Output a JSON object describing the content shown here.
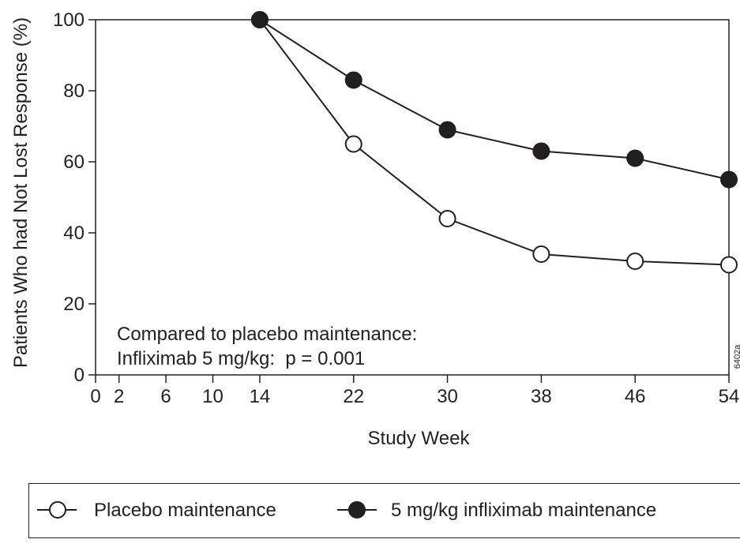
{
  "chart_data": {
    "type": "line",
    "ylabel": "Patients Who had Not Lost Response (%)",
    "xlabel": "Study Week",
    "xlim": [
      0,
      54
    ],
    "ylim": [
      0,
      100
    ],
    "x_ticks": [
      0,
      2,
      6,
      10,
      14,
      22,
      30,
      38,
      46,
      54
    ],
    "y_ticks": [
      0,
      20,
      40,
      60,
      80,
      100
    ],
    "grid": false,
    "legend_position": "bottom",
    "series": [
      {
        "name": "Placebo maintenance",
        "marker": "open-circle",
        "x": [
          14,
          22,
          30,
          38,
          46,
          54
        ],
        "y": [
          100,
          65,
          44,
          34,
          32,
          31
        ]
      },
      {
        "name": "5 mg/kg infliximab maintenance",
        "marker": "filled-circle",
        "x": [
          14,
          22,
          30,
          38,
          46,
          54
        ],
        "y": [
          100,
          83,
          69,
          63,
          61,
          55
        ]
      }
    ],
    "annotation": {
      "line1": "Compared to placebo maintenance:",
      "line2": "Infliximab 5 mg/kg:  p = 0.001"
    },
    "figure_code": "6402a"
  },
  "colors": {
    "ink": "#231f20",
    "background": "#ffffff"
  }
}
